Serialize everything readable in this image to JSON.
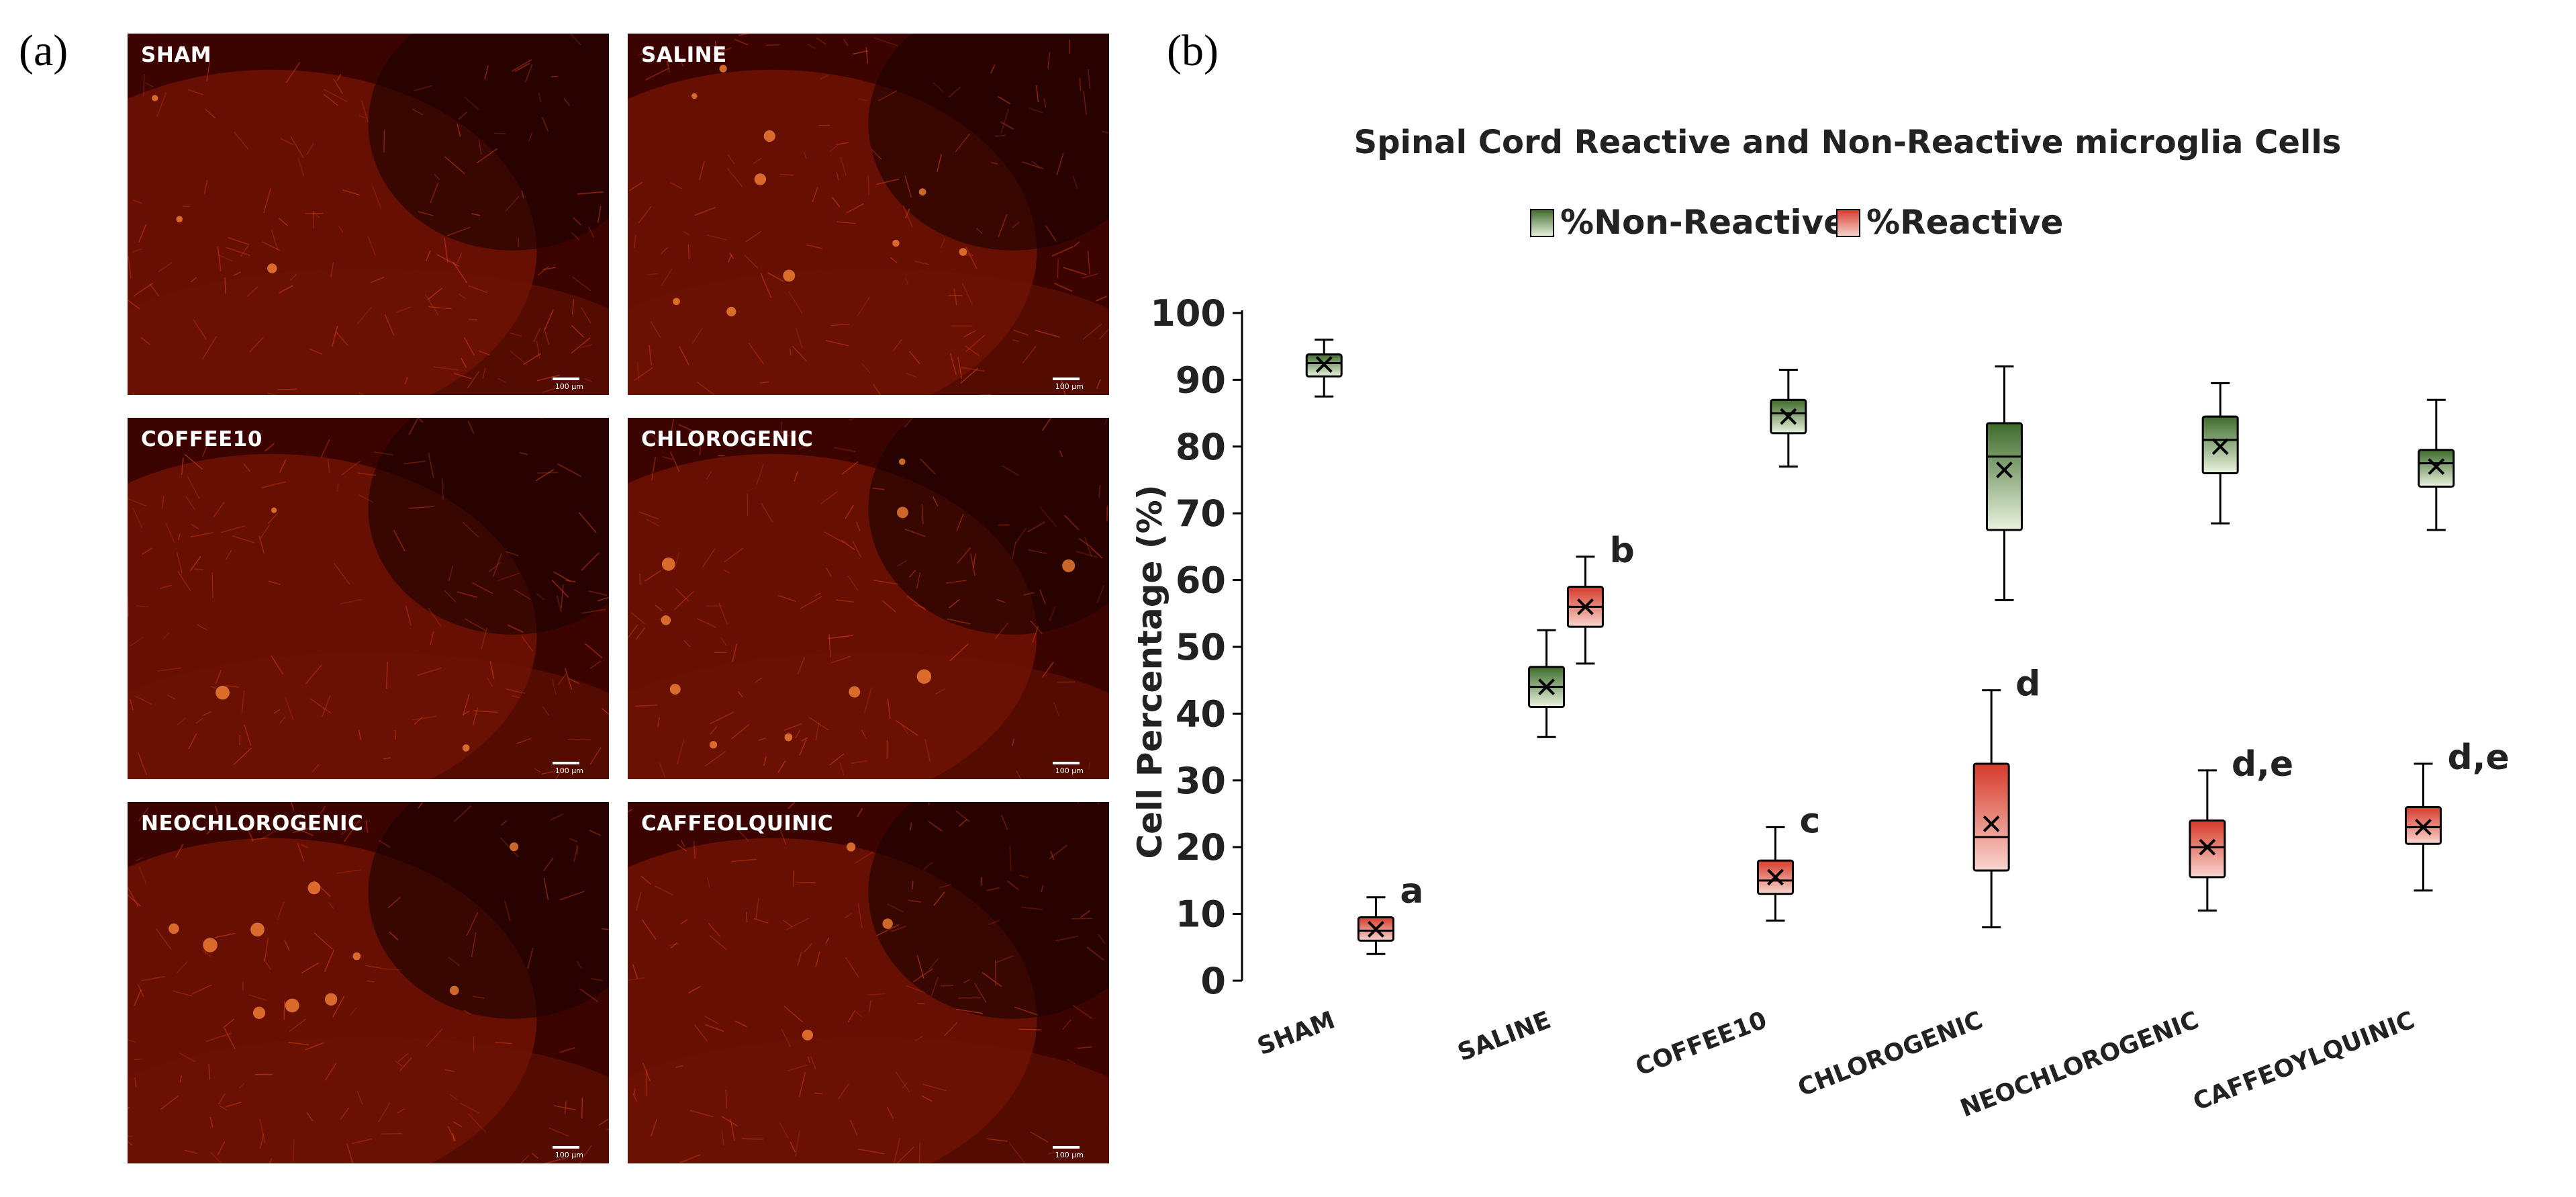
{
  "panel_a": {
    "letter": "(a)",
    "images": [
      {
        "label": "SHAM",
        "scale": "100 µm"
      },
      {
        "label": "SALINE",
        "scale": "100 µm"
      },
      {
        "label": "COFFEE10",
        "scale": "100 µm"
      },
      {
        "label": "CHLOROGENIC",
        "scale": "100 µm"
      },
      {
        "label": "NEOCHLOROGENIC",
        "scale": "100 µm"
      },
      {
        "label": "CAFFEOLQUINIC",
        "scale": "100 µm"
      }
    ]
  },
  "panel_b": {
    "letter": "(b)"
  },
  "colors": {
    "green_dark": "#3d6b2a",
    "green_light": "#eaf3e0",
    "red_dark": "#d63a2a",
    "red_light": "#f8d6cf"
  },
  "chart_data": {
    "type": "boxplot",
    "title": "Spinal Cord Reactive and Non-Reactive microglia Cells",
    "ylabel": "Cell Percentage (%)",
    "xlabel": "",
    "ylim": [
      0,
      100
    ],
    "yticks": [
      0,
      10,
      20,
      30,
      40,
      50,
      60,
      70,
      80,
      90,
      100
    ],
    "categories": [
      "SHAM",
      "SALINE",
      "COFFEE10",
      "CHLOROGENIC",
      "NEOCHLOROGENIC",
      "CAFFEOYLQUINIC"
    ],
    "legend": [
      "%Non-Reactive",
      "%Reactive"
    ],
    "series": [
      {
        "name": "%Non-Reactive",
        "boxes": [
          {
            "min": 87.5,
            "q1": 90.5,
            "median": 92.5,
            "q3": 93.8,
            "max": 96.0,
            "mean": 92.3
          },
          {
            "min": 36.5,
            "q1": 41.0,
            "median": 44.0,
            "q3": 47.0,
            "max": 52.5,
            "mean": 44.0
          },
          {
            "min": 77.0,
            "q1": 82.0,
            "median": 85.0,
            "q3": 87.0,
            "max": 91.5,
            "mean": 84.5
          },
          {
            "min": 57.0,
            "q1": 67.5,
            "median": 78.5,
            "q3": 83.5,
            "max": 92.0,
            "mean": 76.5
          },
          {
            "min": 68.5,
            "q1": 76.0,
            "median": 81.0,
            "q3": 84.5,
            "max": 89.5,
            "mean": 80.0
          },
          {
            "min": 67.5,
            "q1": 74.0,
            "median": 77.5,
            "q3": 79.5,
            "max": 87.0,
            "mean": 77.0
          }
        ]
      },
      {
        "name": "%Reactive",
        "boxes": [
          {
            "min": 4.0,
            "q1": 6.0,
            "median": 7.5,
            "q3": 9.5,
            "max": 12.5,
            "mean": 7.7
          },
          {
            "min": 47.5,
            "q1": 53.0,
            "median": 56.0,
            "q3": 59.0,
            "max": 63.5,
            "mean": 56.0
          },
          {
            "min": 9.0,
            "q1": 13.0,
            "median": 15.0,
            "q3": 18.0,
            "max": 23.0,
            "mean": 15.5
          },
          {
            "min": 8.0,
            "q1": 16.5,
            "median": 21.5,
            "q3": 32.5,
            "max": 43.5,
            "mean": 23.5
          },
          {
            "min": 10.5,
            "q1": 15.5,
            "median": 20.0,
            "q3": 24.0,
            "max": 31.5,
            "mean": 20.0
          },
          {
            "min": 13.5,
            "q1": 20.5,
            "median": 23.0,
            "q3": 26.0,
            "max": 32.5,
            "mean": 23.0
          }
        ],
        "annotations": [
          "a",
          "b",
          "c",
          "d",
          "d,e",
          "d,e"
        ]
      }
    ]
  }
}
